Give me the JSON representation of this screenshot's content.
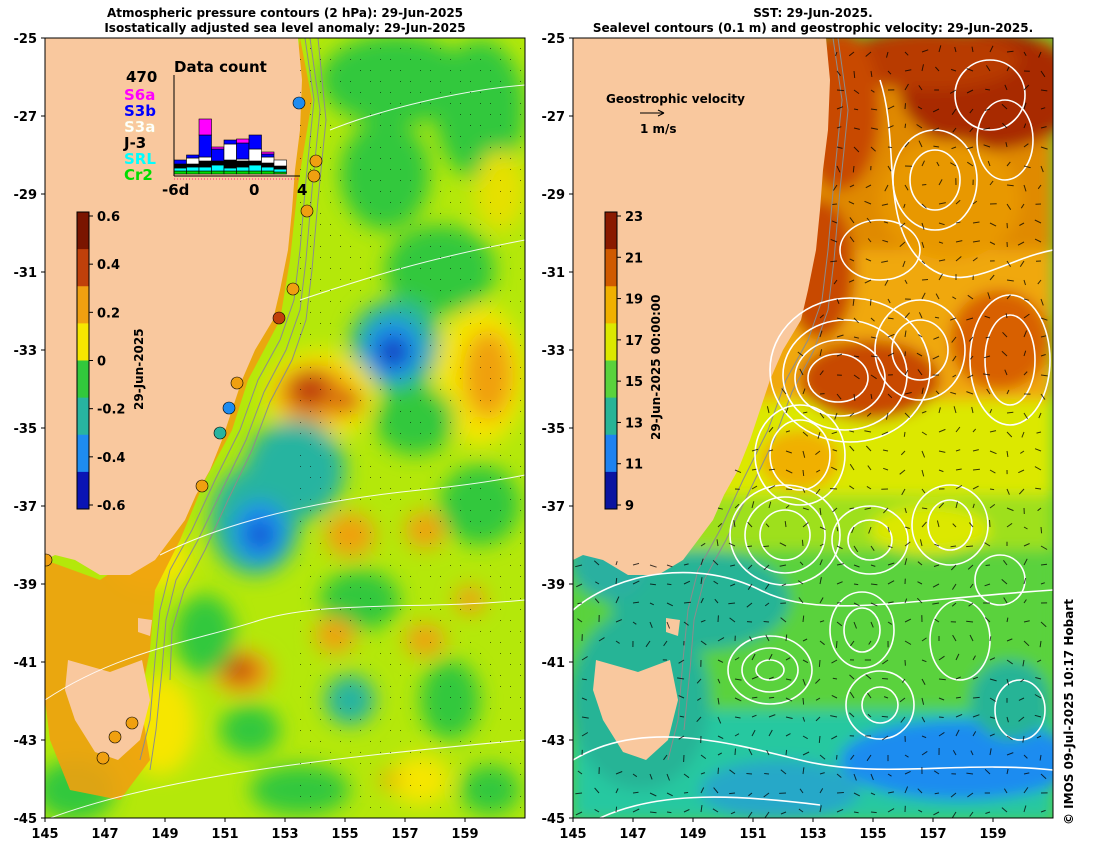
{
  "left_panel": {
    "title_line1": "Atmospheric pressure contours (2 hPa): 29-Jun-2025",
    "title_line2": "Isostatically adjusted sea level anomaly: 29-Jun-2025",
    "colorbar_label": "29-Jun-2025",
    "colorbar_ticks": [
      "0.6",
      "0.4",
      "0.2",
      "0",
      "-0.2",
      "-0.4",
      "-0.6"
    ],
    "colorbar_colors": [
      "#7a1500",
      "#c0400a",
      "#f0a010",
      "#f6e600",
      "#32c83c",
      "#28b4a0",
      "#1e8cf0",
      "#0a14b4"
    ],
    "data_count": {
      "title": "Data count",
      "total": "470",
      "missions": [
        {
          "label": "S6a",
          "color": "#ff00ff"
        },
        {
          "label": "S3b",
          "color": "#0000ff"
        },
        {
          "label": "S3a",
          "color": "#ffffff"
        },
        {
          "label": "J-3",
          "color": "#000000"
        },
        {
          "label": "SRL",
          "color": "#00ffff"
        },
        {
          "label": "Cr2",
          "color": "#00dd00"
        }
      ],
      "x_ticks": [
        "-6d",
        "0",
        "4"
      ]
    }
  },
  "right_panel": {
    "title_line1": "SST: 29-Jun-2025.",
    "title_line2": "Sealevel contours (0.1 m) and geostrophic velocity: 29-Jun-2025.",
    "colorbar_label": "29-Jun-2025 00:00:00",
    "colorbar_ticks": [
      "23",
      "21",
      "19",
      "17",
      "15",
      "13",
      "11",
      "9"
    ],
    "colorbar_colors": [
      "#8a1a00",
      "#d05a00",
      "#f0b000",
      "#dce800",
      "#5ad23c",
      "#28b496",
      "#1e82f0",
      "#0a14a0"
    ],
    "legend_title": "Geostrophic velocity",
    "legend_scale": "1 m/s"
  },
  "lat_ticks": [
    "-25",
    "-27",
    "-29",
    "-31",
    "-33",
    "-35",
    "-37",
    "-39",
    "-41",
    "-43",
    "-45"
  ],
  "lon_ticks": [
    "145",
    "147",
    "149",
    "151",
    "153",
    "155",
    "157",
    "159"
  ],
  "credit": "© IMOS 09-Jul-2025 10:17 Hobart"
}
